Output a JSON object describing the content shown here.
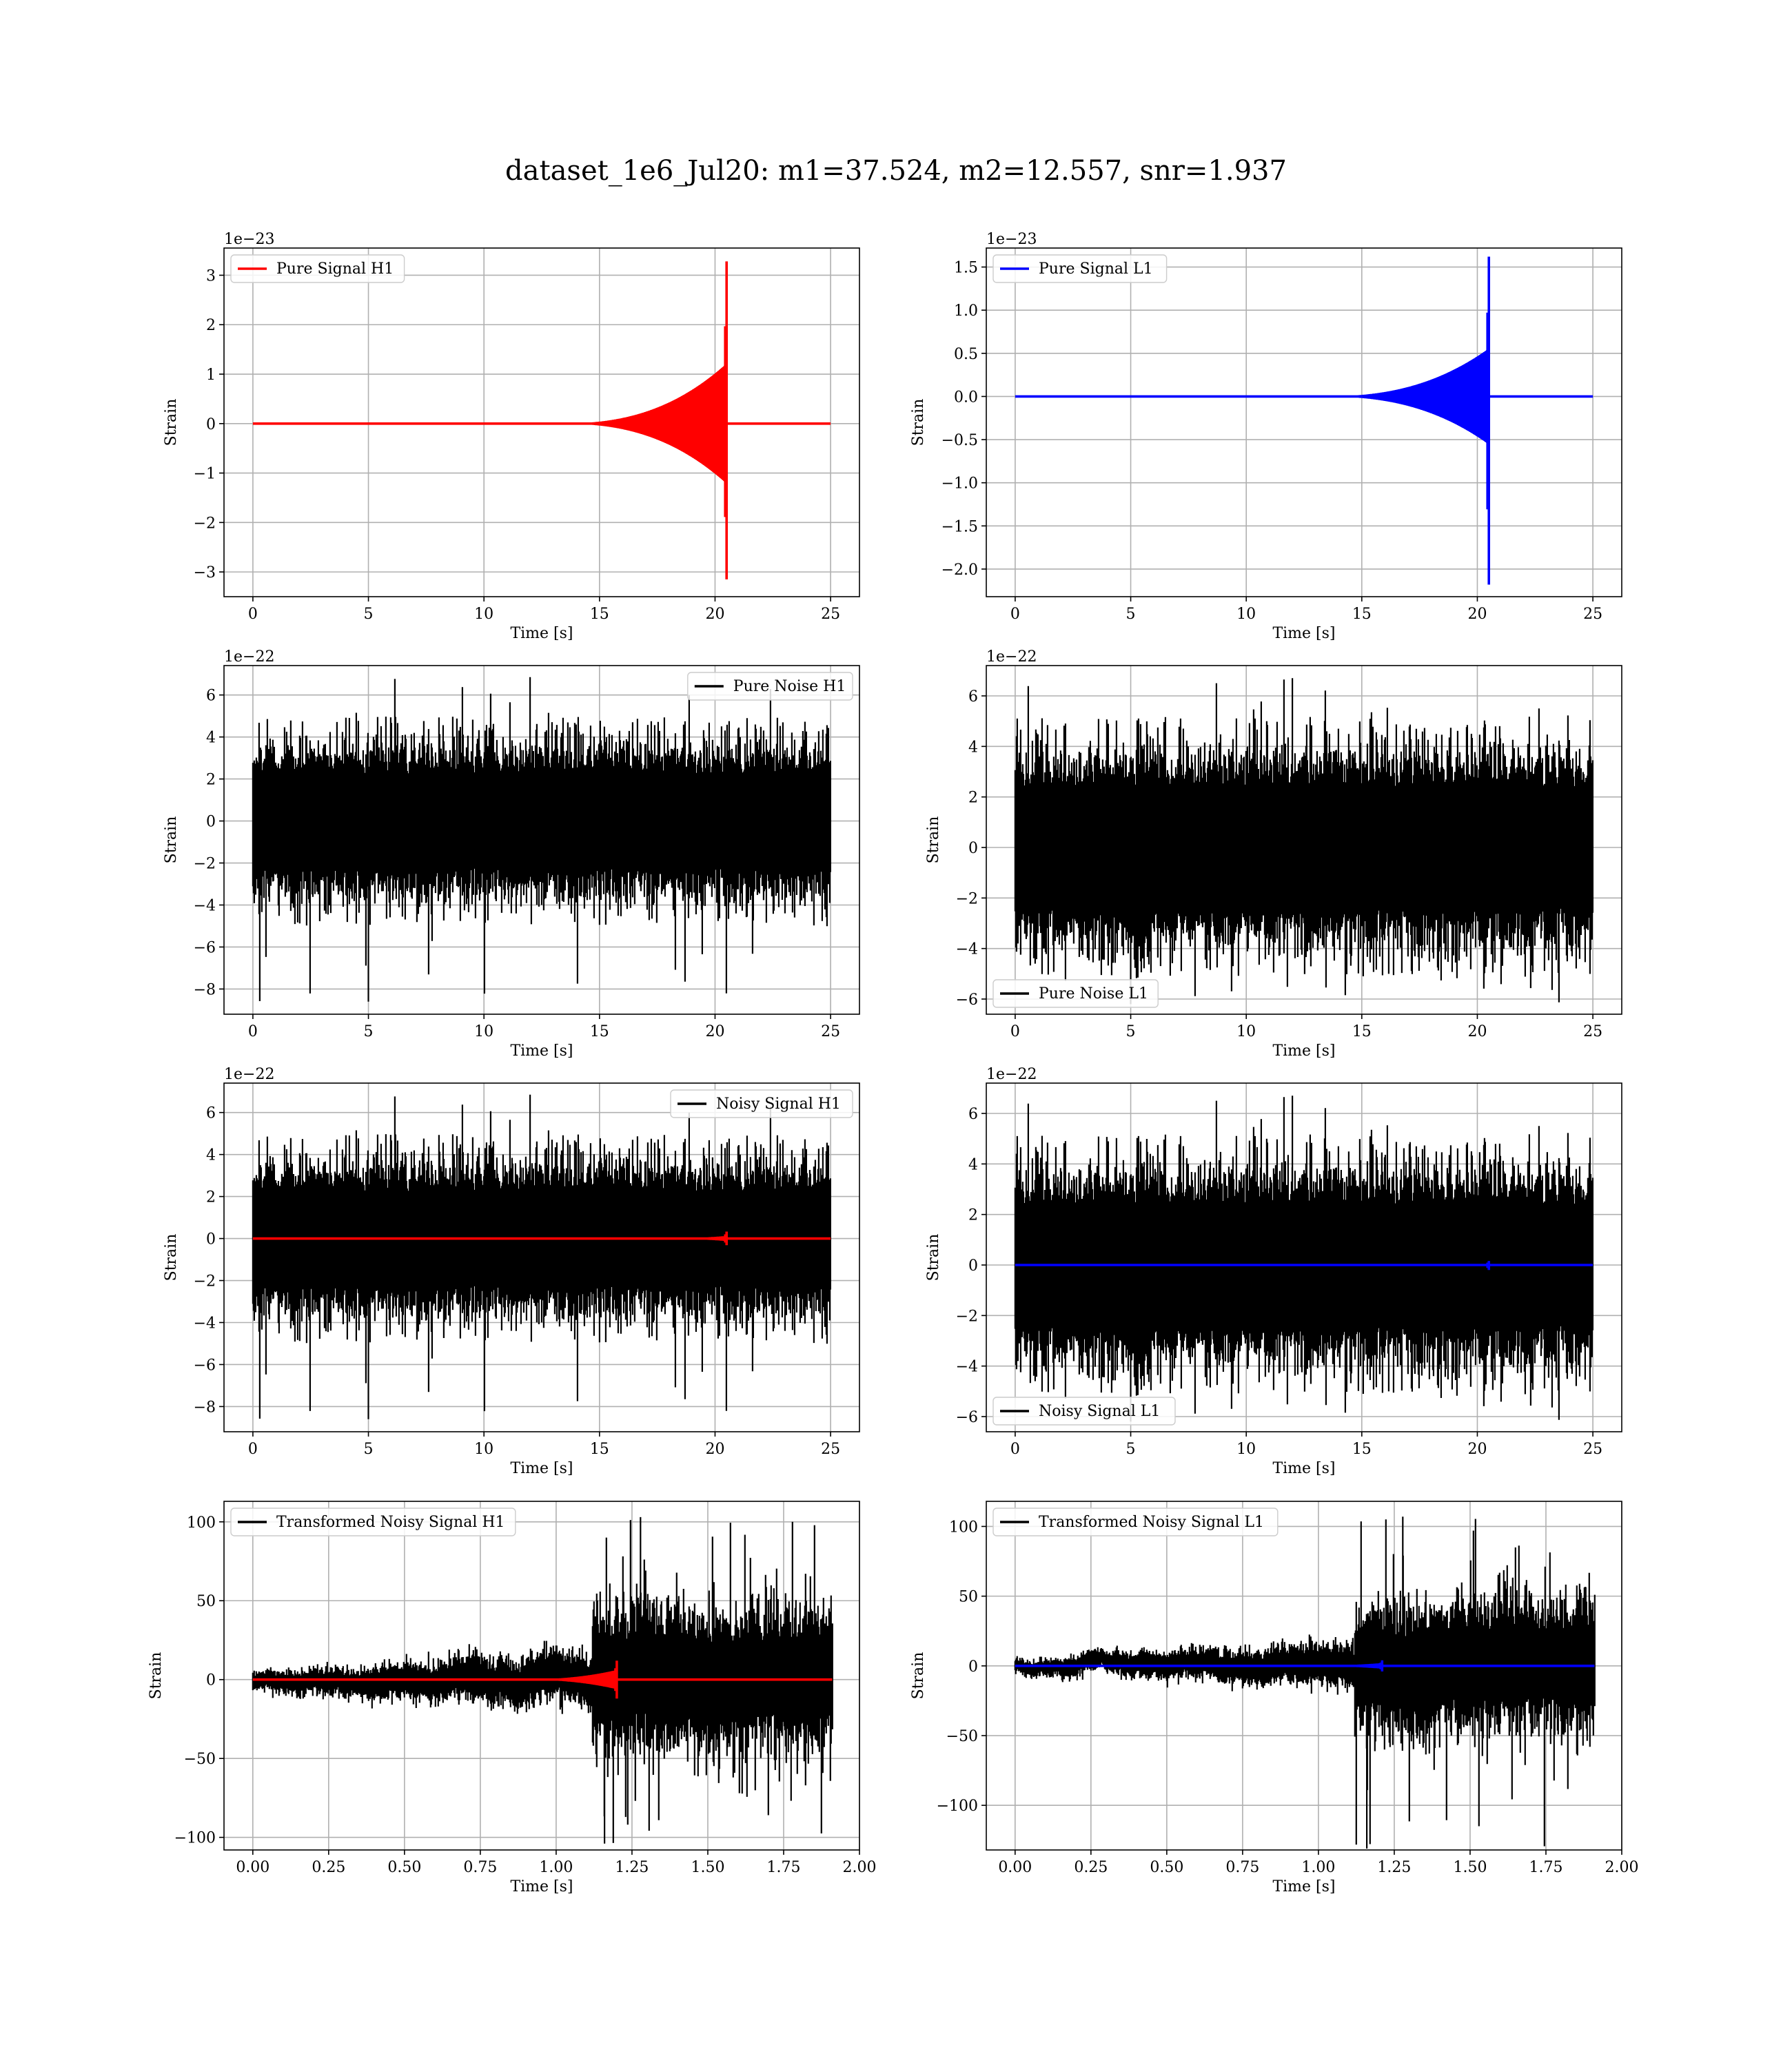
{
  "figure": {
    "title": "dataset_1e6_Jul20: m1=37.524, m2=12.557, snr=1.937"
  },
  "colors": {
    "h1_signal": "#ff0000",
    "l1_signal": "#0000ff",
    "noise": "#000000"
  },
  "chart_data": [
    {
      "id": "pure-signal-h1",
      "type": "line",
      "row": 0,
      "col": 0,
      "offset_text": "1e−23",
      "xlabel": "Time [s]",
      "ylabel": "Strain",
      "xlim": [
        -1.25,
        26.25
      ],
      "ylim": [
        -3.5,
        3.55
      ],
      "xticks": [
        0,
        5,
        10,
        15,
        20,
        25
      ],
      "xtick_labels": [
        "0",
        "5",
        "10",
        "15",
        "20",
        "25"
      ],
      "yticks": [
        -3,
        -2,
        -1,
        0,
        1,
        2,
        3
      ],
      "ytick_labels": [
        "−3",
        "−2",
        "−1",
        "0",
        "1",
        "2",
        "3"
      ],
      "grid": true,
      "legend_loc": "upper left",
      "series": [
        {
          "name": "Pure Signal H1",
          "color": "#ff0000",
          "kind": "chirp",
          "x_range": [
            0,
            25
          ],
          "merger_time": 20.5,
          "chirp_start": 13,
          "pre_merger_amp": 1.2,
          "peak_pos": 3.28,
          "peak_neg": -3.15
        }
      ]
    },
    {
      "id": "pure-signal-l1",
      "type": "line",
      "row": 0,
      "col": 1,
      "offset_text": "1e−23",
      "xlabel": "Time [s]",
      "ylabel": "Strain",
      "xlim": [
        -1.25,
        26.25
      ],
      "ylim": [
        -2.32,
        1.72
      ],
      "xticks": [
        0,
        5,
        10,
        15,
        20,
        25
      ],
      "xtick_labels": [
        "0",
        "5",
        "10",
        "15",
        "20",
        "25"
      ],
      "yticks": [
        -2.0,
        -1.5,
        -1.0,
        -0.5,
        0.0,
        0.5,
        1.0,
        1.5
      ],
      "ytick_labels": [
        "−2.0",
        "−1.5",
        "−1.0",
        "−0.5",
        "0.0",
        "0.5",
        "1.0",
        "1.5"
      ],
      "grid": true,
      "legend_loc": "upper left",
      "series": [
        {
          "name": "Pure Signal L1",
          "color": "#0000ff",
          "kind": "chirp",
          "x_range": [
            0,
            25
          ],
          "merger_time": 20.5,
          "chirp_start": 13,
          "pre_merger_amp": 0.55,
          "peak_pos": 1.62,
          "peak_neg": -2.18
        }
      ]
    },
    {
      "id": "pure-noise-h1",
      "type": "line",
      "row": 1,
      "col": 0,
      "offset_text": "1e−22",
      "xlabel": "Time [s]",
      "ylabel": "Strain",
      "xlim": [
        -1.25,
        26.25
      ],
      "ylim": [
        -9.2,
        7.4
      ],
      "xticks": [
        0,
        5,
        10,
        15,
        20,
        25
      ],
      "xtick_labels": [
        "0",
        "5",
        "10",
        "15",
        "20",
        "25"
      ],
      "yticks": [
        -8,
        -6,
        -4,
        -2,
        0,
        2,
        4,
        6
      ],
      "ytick_labels": [
        "−8",
        "−6",
        "−4",
        "−2",
        "0",
        "2",
        "4",
        "6"
      ],
      "grid": true,
      "legend_loc": "upper right",
      "series": [
        {
          "name": "Pure Noise H1",
          "color": "#000000",
          "kind": "noise",
          "x_range": [
            0,
            25
          ],
          "seed": 11,
          "dense_amp": 3.0,
          "peak_amp": 4.8,
          "max": 6.85,
          "min": -8.6
        }
      ]
    },
    {
      "id": "pure-noise-l1",
      "type": "line",
      "row": 1,
      "col": 1,
      "offset_text": "1e−22",
      "xlabel": "Time [s]",
      "ylabel": "Strain",
      "xlim": [
        -1.25,
        26.25
      ],
      "ylim": [
        -6.6,
        7.2
      ],
      "xticks": [
        0,
        5,
        10,
        15,
        20,
        25
      ],
      "xtick_labels": [
        "0",
        "5",
        "10",
        "15",
        "20",
        "25"
      ],
      "yticks": [
        -6,
        -4,
        -2,
        0,
        2,
        4,
        6
      ],
      "ytick_labels": [
        "−6",
        "−4",
        "−2",
        "0",
        "2",
        "4",
        "6"
      ],
      "grid": true,
      "legend_loc": "lower left",
      "series": [
        {
          "name": "Pure Noise L1",
          "color": "#000000",
          "kind": "noise",
          "x_range": [
            0,
            25
          ],
          "seed": 29,
          "dense_amp": 3.2,
          "peak_amp": 5.0,
          "max": 6.7,
          "min": -6.2
        }
      ]
    },
    {
      "id": "noisy-signal-h1",
      "type": "line",
      "row": 2,
      "col": 0,
      "offset_text": "1e−22",
      "xlabel": "Time [s]",
      "ylabel": "Strain",
      "xlim": [
        -1.25,
        26.25
      ],
      "ylim": [
        -9.2,
        7.4
      ],
      "xticks": [
        0,
        5,
        10,
        15,
        20,
        25
      ],
      "xtick_labels": [
        "0",
        "5",
        "10",
        "15",
        "20",
        "25"
      ],
      "yticks": [
        -8,
        -6,
        -4,
        -2,
        0,
        2,
        4,
        6
      ],
      "ytick_labels": [
        "−8",
        "−6",
        "−4",
        "−2",
        "0",
        "2",
        "4",
        "6"
      ],
      "grid": true,
      "legend_loc": "upper right",
      "series": [
        {
          "name": "Noisy Signal H1",
          "color": "#000000",
          "kind": "noise",
          "x_range": [
            0,
            25
          ],
          "seed": 11,
          "dense_amp": 3.0,
          "peak_amp": 4.8,
          "max": 6.85,
          "min": -8.6
        },
        {
          "name": "",
          "color": "#ff0000",
          "kind": "chirp",
          "x_range": [
            0,
            25
          ],
          "merger_time": 20.5,
          "chirp_start": 17,
          "pre_merger_amp": 0.12,
          "peak_pos": 0.33,
          "peak_neg": -0.32
        }
      ]
    },
    {
      "id": "noisy-signal-l1",
      "type": "line",
      "row": 2,
      "col": 1,
      "offset_text": "1e−22",
      "xlabel": "Time [s]",
      "ylabel": "Strain",
      "xlim": [
        -1.25,
        26.25
      ],
      "ylim": [
        -6.6,
        7.2
      ],
      "xticks": [
        0,
        5,
        10,
        15,
        20,
        25
      ],
      "xtick_labels": [
        "0",
        "5",
        "10",
        "15",
        "20",
        "25"
      ],
      "yticks": [
        -6,
        -4,
        -2,
        0,
        2,
        4,
        6
      ],
      "ytick_labels": [
        "−6",
        "−4",
        "−2",
        "0",
        "2",
        "4",
        "6"
      ],
      "grid": true,
      "legend_loc": "lower left",
      "series": [
        {
          "name": "Noisy Signal L1",
          "color": "#000000",
          "kind": "noise",
          "x_range": [
            0,
            25
          ],
          "seed": 29,
          "dense_amp": 3.2,
          "peak_amp": 5.0,
          "max": 6.7,
          "min": -6.2
        },
        {
          "name": "",
          "color": "#0000ff",
          "kind": "chirp",
          "x_range": [
            0,
            25
          ],
          "merger_time": 20.5,
          "chirp_start": 18,
          "pre_merger_amp": 0.05,
          "peak_pos": 0.16,
          "peak_neg": -0.2
        }
      ]
    },
    {
      "id": "transformed-noisy-signal-h1",
      "type": "line",
      "row": 3,
      "col": 0,
      "offset_text": "",
      "xlabel": "Time [s]",
      "ylabel": "Strain",
      "xlim": [
        -0.095,
        2.0
      ],
      "ylim": [
        -108,
        113
      ],
      "xticks": [
        0.0,
        0.25,
        0.5,
        0.75,
        1.0,
        1.25,
        1.5,
        1.75,
        2.0
      ],
      "xtick_labels": [
        "0.00",
        "0.25",
        "0.50",
        "0.75",
        "1.00",
        "1.25",
        "1.50",
        "1.75",
        "2.00"
      ],
      "yticks": [
        -100,
        -50,
        0,
        50,
        100
      ],
      "ytick_labels": [
        "−100",
        "−50",
        "0",
        "50",
        "100"
      ],
      "grid": true,
      "legend_loc": "upper left",
      "series": [
        {
          "name": "Transformed Noisy Signal H1",
          "color": "#000000",
          "kind": "transformed",
          "x_range": [
            0,
            1.91
          ],
          "seed": 53,
          "jump_at": 1.12,
          "amp_before": 8,
          "amp_after": 48,
          "max": 103,
          "min": -104
        },
        {
          "name": "",
          "color": "#ff0000",
          "kind": "chirp",
          "x_range": [
            0,
            1.91
          ],
          "merger_time": 1.2,
          "chirp_start": 0.85,
          "pre_merger_amp": 6,
          "peak_pos": 12,
          "peak_neg": -12
        }
      ]
    },
    {
      "id": "transformed-noisy-signal-l1",
      "type": "line",
      "row": 3,
      "col": 1,
      "offset_text": "",
      "xlabel": "Time [s]",
      "ylabel": "Strain",
      "xlim": [
        -0.095,
        2.0
      ],
      "ylim": [
        -132,
        118
      ],
      "xticks": [
        0.0,
        0.25,
        0.5,
        0.75,
        1.0,
        1.25,
        1.5,
        1.75,
        2.0
      ],
      "xtick_labels": [
        "0.00",
        "0.25",
        "0.50",
        "0.75",
        "1.00",
        "1.25",
        "1.50",
        "1.75",
        "2.00"
      ],
      "yticks": [
        -100,
        -50,
        0,
        50,
        100
      ],
      "ytick_labels": [
        "−100",
        "−50",
        "0",
        "50",
        "100"
      ],
      "grid": true,
      "legend_loc": "upper left",
      "series": [
        {
          "name": "Transformed Noisy Signal L1",
          "color": "#000000",
          "kind": "transformed",
          "x_range": [
            0,
            1.91
          ],
          "seed": 71,
          "jump_at": 1.12,
          "amp_before": 7,
          "amp_after": 50,
          "max": 107,
          "min": -131
        },
        {
          "name": "",
          "color": "#0000ff",
          "kind": "chirp",
          "x_range": [
            0,
            1.91
          ],
          "merger_time": 1.21,
          "chirp_start": 0.9,
          "pre_merger_amp": 2,
          "peak_pos": 4,
          "peak_neg": -4
        }
      ]
    }
  ]
}
